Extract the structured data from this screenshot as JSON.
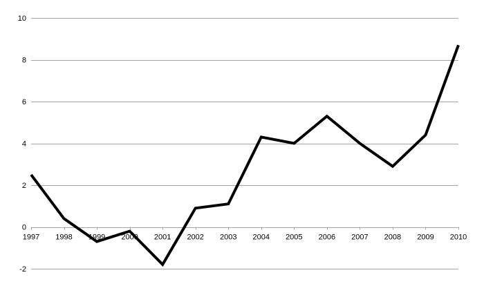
{
  "chart_data": {
    "type": "line",
    "title": "",
    "xlabel": "",
    "ylabel": "",
    "x": [
      "1997",
      "1998",
      "1999",
      "2000",
      "2001",
      "2002",
      "2003",
      "2004",
      "2005",
      "2006",
      "2007",
      "2008",
      "2009",
      "2010"
    ],
    "series": [
      {
        "values": [
          2.5,
          0.4,
          -0.7,
          -0.2,
          -1.8,
          0.9,
          1.1,
          4.3,
          4.0,
          5.3,
          4.0,
          2.9,
          4.4,
          8.7
        ]
      }
    ],
    "ylim": [
      -2,
      10
    ],
    "yticks": [
      -2,
      0,
      2,
      4,
      6,
      8,
      10
    ],
    "ytick_labels": [
      "-2",
      "0",
      "2",
      "4",
      "6",
      "8",
      "10"
    ],
    "grid": true,
    "legend": "none",
    "colors": {
      "line": "#000000",
      "grid": "#a6a6a6"
    }
  }
}
